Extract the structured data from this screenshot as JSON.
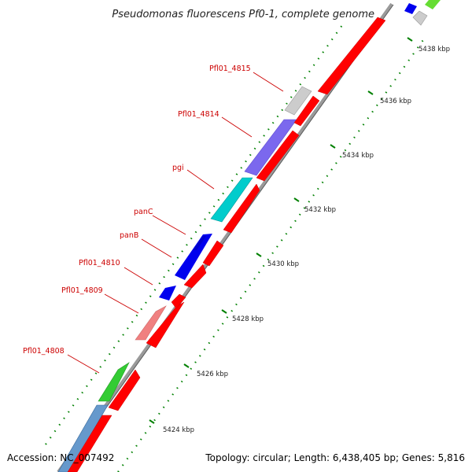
{
  "title": "Pseudomonas fluorescens Pf0-1, complete genome",
  "accession": "Accession: NC_007492",
  "topology": "Topology: circular; Length: 6,438,405 bp; Genes: 5,816",
  "colors": {
    "background": "#ffffff",
    "backbone": "#9a9a9a",
    "forward_strand": "#ff0000",
    "tick_mark": "#008000",
    "gene_label": "#cc0000",
    "leader_line": "#cc0000"
  },
  "scale": {
    "unit": "kbp",
    "major_ticks": [
      {
        "value": 5424,
        "label": "5424 kbp"
      },
      {
        "value": 5426,
        "label": "5426 kbp"
      },
      {
        "value": 5428,
        "label": "5428 kbp"
      },
      {
        "value": 5430,
        "label": "5430 kbp"
      },
      {
        "value": 5432,
        "label": "5432 kbp"
      },
      {
        "value": 5434,
        "label": "5434 kbp"
      },
      {
        "value": 5436,
        "label": "5436 kbp"
      },
      {
        "value": 5438,
        "label": "5438 kbp"
      }
    ]
  },
  "labeled_genes": [
    {
      "name": "Pfl01_4808",
      "color": "#33cc33"
    },
    {
      "name": "Pfl01_4809",
      "color": "#f08080"
    },
    {
      "name": "Pfl01_4810",
      "color": "#0000ee"
    },
    {
      "name": "panB",
      "color": "#0000ee"
    },
    {
      "name": "panC",
      "color": "#0000ee"
    },
    {
      "name": "pgi",
      "color": "#00cccc"
    },
    {
      "name": "Pfl01_4814",
      "color": "#7b68ee"
    },
    {
      "name": "Pfl01_4815",
      "color": "#cccccc"
    }
  ]
}
